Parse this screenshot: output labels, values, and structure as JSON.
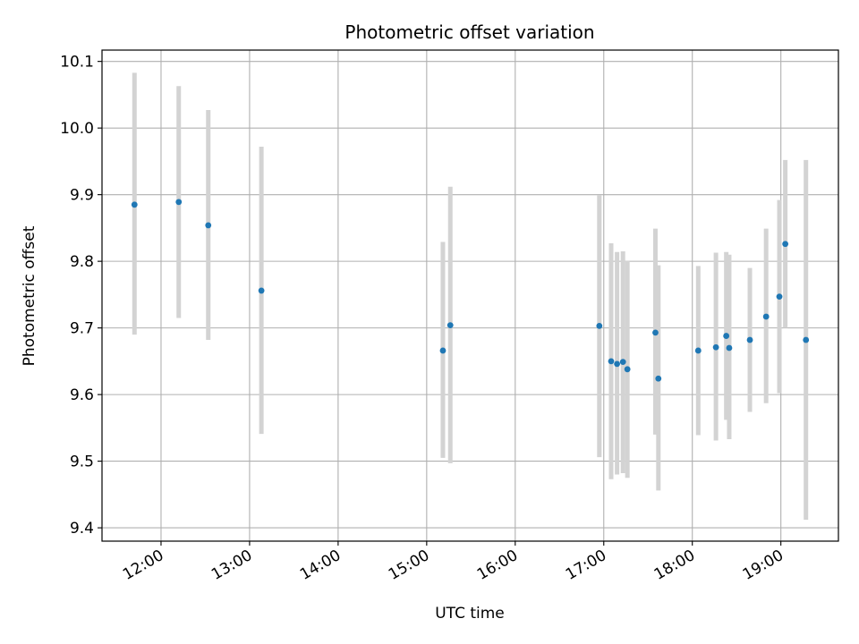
{
  "chart_data": {
    "type": "scatter",
    "title": "Photometric offset variation",
    "xlabel": "UTC time",
    "ylabel": "Photometric offset",
    "x_ticks": [
      "12:00",
      "13:00",
      "14:00",
      "15:00",
      "16:00",
      "17:00",
      "18:00",
      "19:00"
    ],
    "y_ticks": [
      "9.4",
      "9.5",
      "9.6",
      "9.7",
      "9.8",
      "9.9",
      "10.0",
      "10.1"
    ],
    "xlim": [
      "11:20",
      "19:39"
    ],
    "ylim": [
      9.38,
      10.117
    ],
    "grid": true,
    "colors": {
      "point": "#1f77b4",
      "errorbar": "#d3d3d3",
      "grid": "#b0b0b0"
    },
    "series": [
      {
        "points": [
          {
            "x": "11:42",
            "y": 9.885,
            "yerr_low": 9.69,
            "yerr_high": 10.083
          },
          {
            "x": "12:12",
            "y": 9.889,
            "yerr_low": 9.715,
            "yerr_high": 10.063
          },
          {
            "x": "12:32",
            "y": 9.854,
            "yerr_low": 9.682,
            "yerr_high": 10.027
          },
          {
            "x": "13:08",
            "y": 9.756,
            "yerr_low": 9.541,
            "yerr_high": 9.972
          },
          {
            "x": "15:11",
            "y": 9.666,
            "yerr_low": 9.505,
            "yerr_high": 9.829
          },
          {
            "x": "15:16",
            "y": 9.704,
            "yerr_low": 9.497,
            "yerr_high": 9.912
          },
          {
            "x": "16:57",
            "y": 9.703,
            "yerr_low": 9.506,
            "yerr_high": 9.899
          },
          {
            "x": "17:05",
            "y": 9.65,
            "yerr_low": 9.473,
            "yerr_high": 9.827
          },
          {
            "x": "17:09",
            "y": 9.646,
            "yerr_low": 9.48,
            "yerr_high": 9.814
          },
          {
            "x": "17:13",
            "y": 9.649,
            "yerr_low": 9.482,
            "yerr_high": 9.815
          },
          {
            "x": "17:16",
            "y": 9.638,
            "yerr_low": 9.475,
            "yerr_high": 9.801
          },
          {
            "x": "17:35",
            "y": 9.693,
            "yerr_low": 9.54,
            "yerr_high": 9.849
          },
          {
            "x": "17:37",
            "y": 9.624,
            "yerr_low": 9.456,
            "yerr_high": 9.794
          },
          {
            "x": "18:04",
            "y": 9.666,
            "yerr_low": 9.539,
            "yerr_high": 9.793
          },
          {
            "x": "18:16",
            "y": 9.671,
            "yerr_low": 9.531,
            "yerr_high": 9.813
          },
          {
            "x": "18:23",
            "y": 9.688,
            "yerr_low": 9.562,
            "yerr_high": 9.814
          },
          {
            "x": "18:25",
            "y": 9.67,
            "yerr_low": 9.533,
            "yerr_high": 9.81
          },
          {
            "x": "18:39",
            "y": 9.682,
            "yerr_low": 9.574,
            "yerr_high": 9.79
          },
          {
            "x": "18:50",
            "y": 9.717,
            "yerr_low": 9.587,
            "yerr_high": 9.849
          },
          {
            "x": "18:59",
            "y": 9.747,
            "yerr_low": 9.602,
            "yerr_high": 9.892
          },
          {
            "x": "19:03",
            "y": 9.826,
            "yerr_low": 9.7,
            "yerr_high": 9.952
          },
          {
            "x": "19:17",
            "y": 9.682,
            "yerr_low": 9.412,
            "yerr_high": 9.952
          }
        ]
      }
    ]
  }
}
